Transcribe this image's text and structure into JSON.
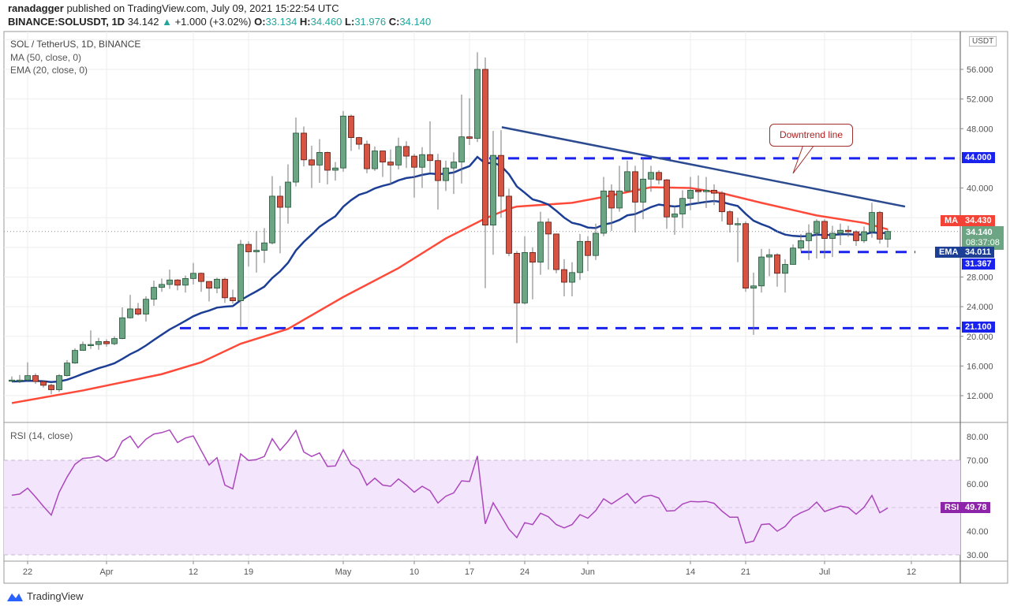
{
  "header": {
    "author": "ranadagger",
    "published": "published on TradingView.com, July 09, 2021 15:22:54 UTC",
    "symbol": "BINANCE:SOLUSDT, 1D",
    "last": "34.142",
    "change": "+1.000 (+3.02%)",
    "o_label": "O:",
    "o": "33.134",
    "h_label": "H:",
    "h": "34.460",
    "l_label": "L:",
    "l": "31.976",
    "c_label": "C:",
    "c": "34.140"
  },
  "legend": {
    "title": "SOL / TetherUS, 1D, BINANCE",
    "ma": "MA (50, close, 0)",
    "ema": "EMA (20, close, 0)",
    "rsi": "RSI (14, close)"
  },
  "annotation": {
    "callout": "Downtrend line"
  },
  "axis_labels": {
    "currency": "USDT",
    "ma_tag": "MA",
    "ma_value": "34.430",
    "last_price": "34.140",
    "countdown": "08:37:08",
    "ema_tag": "EMA",
    "ema_value": "34.011",
    "level_31": "31.367",
    "level_44": "44.000",
    "level_21": "21.100",
    "rsi_tag": "RSI",
    "rsi_value": "49.78"
  },
  "branding": {
    "logo_text": "TradingView"
  },
  "colors": {
    "up": "#6ba583",
    "down": "#d75442",
    "ema": "#1c3f95",
    "ma": "#ff4a3a",
    "level": "#1a22ee",
    "trend": "#2b4a8f",
    "rsi": "#ab47bc"
  },
  "chart_data": {
    "type": "candlestick",
    "title": "SOL / TetherUS, 1D, BINANCE",
    "ylim": [
      10,
      60
    ],
    "y_ticks": [
      "12.000",
      "16.000",
      "20.000",
      "24.000",
      "28.000",
      "40.000",
      "48.000",
      "52.000",
      "56.000"
    ],
    "x_ticks": [
      {
        "label": "22",
        "index": 3
      },
      {
        "label": "Apr",
        "index": 13
      },
      {
        "label": "12",
        "index": 24
      },
      {
        "label": "19",
        "index": 31
      },
      {
        "label": "May",
        "index": 43
      },
      {
        "label": "10",
        "index": 52
      },
      {
        "label": "17",
        "index": 59
      },
      {
        "label": "24",
        "index": 66
      },
      {
        "label": "Jun",
        "index": 74
      },
      {
        "label": "14",
        "index": 87
      },
      {
        "label": "21",
        "index": 94
      },
      {
        "label": "Jul",
        "index": 104
      },
      {
        "label": "12",
        "index": 115
      }
    ],
    "first_open": 14.0,
    "close": [
      14.1,
      14.1,
      14.7,
      13.9,
      13.4,
      12.8,
      14.7,
      16.4,
      18.1,
      18.9,
      18.9,
      19.3,
      19.0,
      19.7,
      22.5,
      23.7,
      23.0,
      25.0,
      26.6,
      27.0,
      27.6,
      26.9,
      27.8,
      28.5,
      27.4,
      26.5,
      27.7,
      25.2,
      24.8,
      32.4,
      31.4,
      31.6,
      32.6,
      38.9,
      37.4,
      40.8,
      47.4,
      43.8,
      43.1,
      44.8,
      42.4,
      42.7,
      49.7,
      46.8,
      45.9,
      42.6,
      45.0,
      43.5,
      43.1,
      45.6,
      44.3,
      42.8,
      44.5,
      43.7,
      41.0,
      42.7,
      43.5,
      46.9,
      46.7,
      56.0,
      35.0,
      44.4,
      38.9,
      31.2,
      24.5,
      31.3,
      30.0,
      35.4,
      33.8,
      29.0,
      27.3,
      28.6,
      32.8,
      30.9,
      33.9,
      39.6,
      37.3,
      39.6,
      42.2,
      38.1,
      41.2,
      42.1,
      41.1,
      36.1,
      36.5,
      38.6,
      39.7,
      39.5,
      39.7,
      39.3,
      36.8,
      35.1,
      35.2,
      26.5,
      26.8,
      30.7,
      31.0,
      28.5,
      29.7,
      31.9,
      32.9,
      33.9,
      35.5,
      33.2,
      33.9,
      34.3,
      34.1,
      32.9,
      34.1,
      36.7,
      33.1,
      34.14
    ],
    "high": [
      14.6,
      14.8,
      16.5,
      15.0,
      14.1,
      13.6,
      14.9,
      16.8,
      18.4,
      19.3,
      20.8,
      19.8,
      19.6,
      20.0,
      23.9,
      25.6,
      24.5,
      25.4,
      27.5,
      27.8,
      29.0,
      27.7,
      28.2,
      29.9,
      28.6,
      27.2,
      27.9,
      27.9,
      26.3,
      33.0,
      32.8,
      34.2,
      34.6,
      41.6,
      40.3,
      43.2,
      49.5,
      48.3,
      45.7,
      46.6,
      44.9,
      43.5,
      50.4,
      49.9,
      46.9,
      46.4,
      45.6,
      44.9,
      45.2,
      46.8,
      46.3,
      44.6,
      45.5,
      49.0,
      44.6,
      43.7,
      44.8,
      52.6,
      52.1,
      58.3,
      57.6,
      47.7,
      47.8,
      39.9,
      31.5,
      33.5,
      32.0,
      36.8,
      35.9,
      33.8,
      30.4,
      30.0,
      33.8,
      33.5,
      35.2,
      41.5,
      40.5,
      43.0,
      43.7,
      43.0,
      44.0,
      43.0,
      42.4,
      41.2,
      37.5,
      39.7,
      41.5,
      41.7,
      41.5,
      40.5,
      39.6,
      37.0,
      36.0,
      35.5,
      28.6,
      31.8,
      31.8,
      31.2,
      30.4,
      32.4,
      33.8,
      35.1,
      35.8,
      35.8,
      34.9,
      35.2,
      34.9,
      34.3,
      34.8,
      38.0,
      36.9,
      34.46
    ],
    "low": [
      13.9,
      13.7,
      14.0,
      13.6,
      13.1,
      12.2,
      12.5,
      14.6,
      16.3,
      18.5,
      18.3,
      18.2,
      18.6,
      18.8,
      19.6,
      22.4,
      22.8,
      22.0,
      24.1,
      26.0,
      26.4,
      26.2,
      25.9,
      27.0,
      26.0,
      24.7,
      25.8,
      24.5,
      24.4,
      21.3,
      29.4,
      28.6,
      29.9,
      32.4,
      31.2,
      35.2,
      40.2,
      42.9,
      40.0,
      40.7,
      40.5,
      41.0,
      42.2,
      45.0,
      45.2,
      42.0,
      42.3,
      41.5,
      40.4,
      42.5,
      42.7,
      38.7,
      40.0,
      42.1,
      37.1,
      39.6,
      39.2,
      40.6,
      45.8,
      46.2,
      26.5,
      31.0,
      36.0,
      30.8,
      19.1,
      24.3,
      25.0,
      28.3,
      29.0,
      28.5,
      25.4,
      25.4,
      27.6,
      28.8,
      30.3,
      33.5,
      34.2,
      36.8,
      39.5,
      34.0,
      35.8,
      39.5,
      40.5,
      34.5,
      33.7,
      34.6,
      37.0,
      37.8,
      37.3,
      37.7,
      35.5,
      34.0,
      30.0,
      26.0,
      20.2,
      25.9,
      28.1,
      26.7,
      25.9,
      30.8,
      31.5,
      30.3,
      30.5,
      30.5,
      30.7,
      32.3,
      33.4,
      32.2,
      32.6,
      33.3,
      32.5,
      31.98
    ],
    "ema20_seed": 13.9,
    "ma50": [
      [
        1,
        11.0
      ],
      [
        10,
        12.7
      ],
      [
        20,
        14.9
      ],
      [
        25,
        16.5
      ],
      [
        30,
        19.0
      ],
      [
        36,
        21.0
      ],
      [
        43,
        25.3
      ],
      [
        50,
        29.2
      ],
      [
        56,
        33.2
      ],
      [
        61,
        35.9
      ],
      [
        64,
        37.2
      ],
      [
        65,
        37.5
      ],
      [
        72,
        38.0
      ],
      [
        76,
        38.8
      ],
      [
        82,
        40.1
      ],
      [
        87,
        40.0
      ],
      [
        91,
        39.3
      ],
      [
        96,
        38.0
      ],
      [
        103,
        36.3
      ],
      [
        109,
        35.3
      ],
      [
        112,
        34.43
      ]
    ],
    "levels": [
      {
        "name": "resistance",
        "value": 44.0,
        "from": 61.5
      },
      {
        "name": "support",
        "value": 21.1,
        "from": 22.3
      },
      {
        "name": "range-low",
        "value": 31.367,
        "from": 101,
        "to": 115.5
      }
    ],
    "trendline": {
      "from": [
        63.1,
        48.2
      ],
      "to": [
        114.2,
        37.5
      ]
    },
    "rsi": {
      "ylim": [
        30,
        80
      ],
      "overbought": 70,
      "oversold": 30,
      "y_ticks": [
        "30.00",
        "40.00",
        "60.00",
        "70.00",
        "80.00"
      ],
      "values": [
        55.2,
        55.7,
        58.2,
        54.5,
        50.5,
        46.8,
        56.5,
        62.9,
        68.3,
        70.8,
        71.1,
        71.8,
        69.6,
        71.6,
        78.1,
        80.2,
        75.3,
        78.9,
        81.1,
        81.7,
        82.8,
        77.5,
        79.4,
        80.3,
        74.1,
        68.0,
        71.1,
        59.5,
        57.9,
        72.7,
        69.9,
        70.3,
        71.6,
        79.1,
        74.2,
        78.0,
        82.6,
        73.5,
        71.6,
        73.1,
        67.4,
        67.6,
        74.4,
        68.3,
        66.2,
        59.5,
        62.4,
        59.5,
        59.0,
        62.1,
        59.5,
        56.5,
        59.0,
        57.1,
        51.9,
        54.8,
        56.2,
        61.3,
        61.0,
        71.8,
        43.1,
        52.0,
        46.5,
        40.8,
        37.3,
        43.6,
        42.8,
        47.6,
        46.1,
        42.8,
        41.4,
        42.8,
        47.0,
        45.5,
        48.7,
        53.7,
        51.5,
        53.7,
        55.9,
        51.8,
        54.6,
        55.2,
        54.0,
        48.5,
        48.7,
        51.5,
        52.6,
        52.4,
        52.6,
        51.8,
        48.5,
        45.9,
        45.9,
        35.0,
        35.8,
        42.8,
        43.1,
        40.0,
        42.0,
        45.9,
        47.8,
        49.2,
        52.3,
        48.3,
        49.5,
        50.6,
        50.0,
        47.2,
        50.1,
        55.1,
        47.8,
        49.78
      ]
    }
  }
}
